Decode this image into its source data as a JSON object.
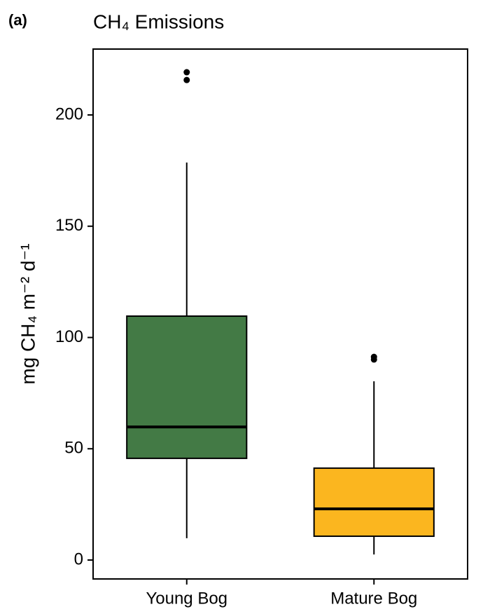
{
  "chart_data": {
    "type": "box",
    "panel_label": "(a)",
    "title": "CH₄ Emissions",
    "y_label": "mg CH₄ m⁻² d⁻¹",
    "categories": [
      "Young Bog",
      "Mature Bog"
    ],
    "colors": [
      "#437a45",
      "#fbb61f"
    ],
    "boxes": [
      {
        "min": 9.8,
        "q1": 45.7,
        "median": 59.8,
        "q3": 109.6,
        "max": 178.6,
        "outliers": [
          219.2,
          215.7
        ]
      },
      {
        "min": 2.5,
        "q1": 10.7,
        "median": 23,
        "q3": 41.3,
        "max": 80.3,
        "outliers": [
          91.3,
          90.1
        ]
      }
    ],
    "ylim": [
      -8.5,
      229.6
    ],
    "yticks": [
      0,
      50,
      100,
      150,
      200
    ]
  }
}
